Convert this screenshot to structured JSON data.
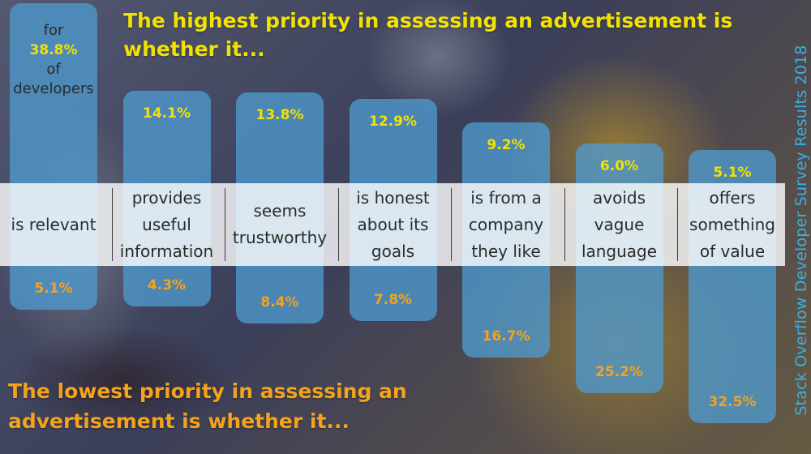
{
  "title_top": "The highest priority in assessing an advertisement is whether it...",
  "title_bottom": "The lowest priority in assessing an advertisement is whether it...",
  "first_label": {
    "prefix": "for",
    "suffix_line1": "of",
    "suffix_line2": "developers"
  },
  "side_caption": "Stack Overflow Developer Survey Results 2018",
  "colors": {
    "bar": "#4e9ace",
    "highest": "#f2e200",
    "lowest": "#f5a21c",
    "caption": "#3ab0e6"
  },
  "chart_data": {
    "type": "bar",
    "title": "The highest priority in assessing an advertisement is whether it...",
    "subtitle": "The lowest priority in assessing an advertisement is whether it...",
    "categories": [
      "is relevant",
      "provides useful information",
      "seems trustworthy",
      "is honest about its goals",
      "is from a company they like",
      "avoids vague language",
      "offers something of value"
    ],
    "category_lines": [
      [
        "is relevant"
      ],
      [
        "provides",
        "useful",
        "information"
      ],
      [
        "seems",
        "trustworthy"
      ],
      [
        "is honest",
        "about its",
        "goals"
      ],
      [
        "is from a",
        "company",
        "they like"
      ],
      [
        "avoids",
        "vague",
        "language"
      ],
      [
        "offers",
        "something",
        "of value"
      ]
    ],
    "series": [
      {
        "name": "highest priority",
        "values": [
          38.8,
          14.1,
          13.8,
          12.9,
          9.2,
          6.0,
          5.1
        ],
        "labels": [
          "38.8%",
          "14.1%",
          "13.8%",
          "12.9%",
          "9.2%",
          "6.0%",
          "5.1%"
        ]
      },
      {
        "name": "lowest priority",
        "values": [
          5.1,
          4.3,
          8.4,
          7.8,
          16.7,
          25.2,
          32.5
        ],
        "labels": [
          "5.1%",
          "4.3%",
          "8.4%",
          "7.8%",
          "16.7%",
          "25.2%",
          "32.5%"
        ]
      }
    ],
    "grid": false,
    "legend": "none"
  }
}
